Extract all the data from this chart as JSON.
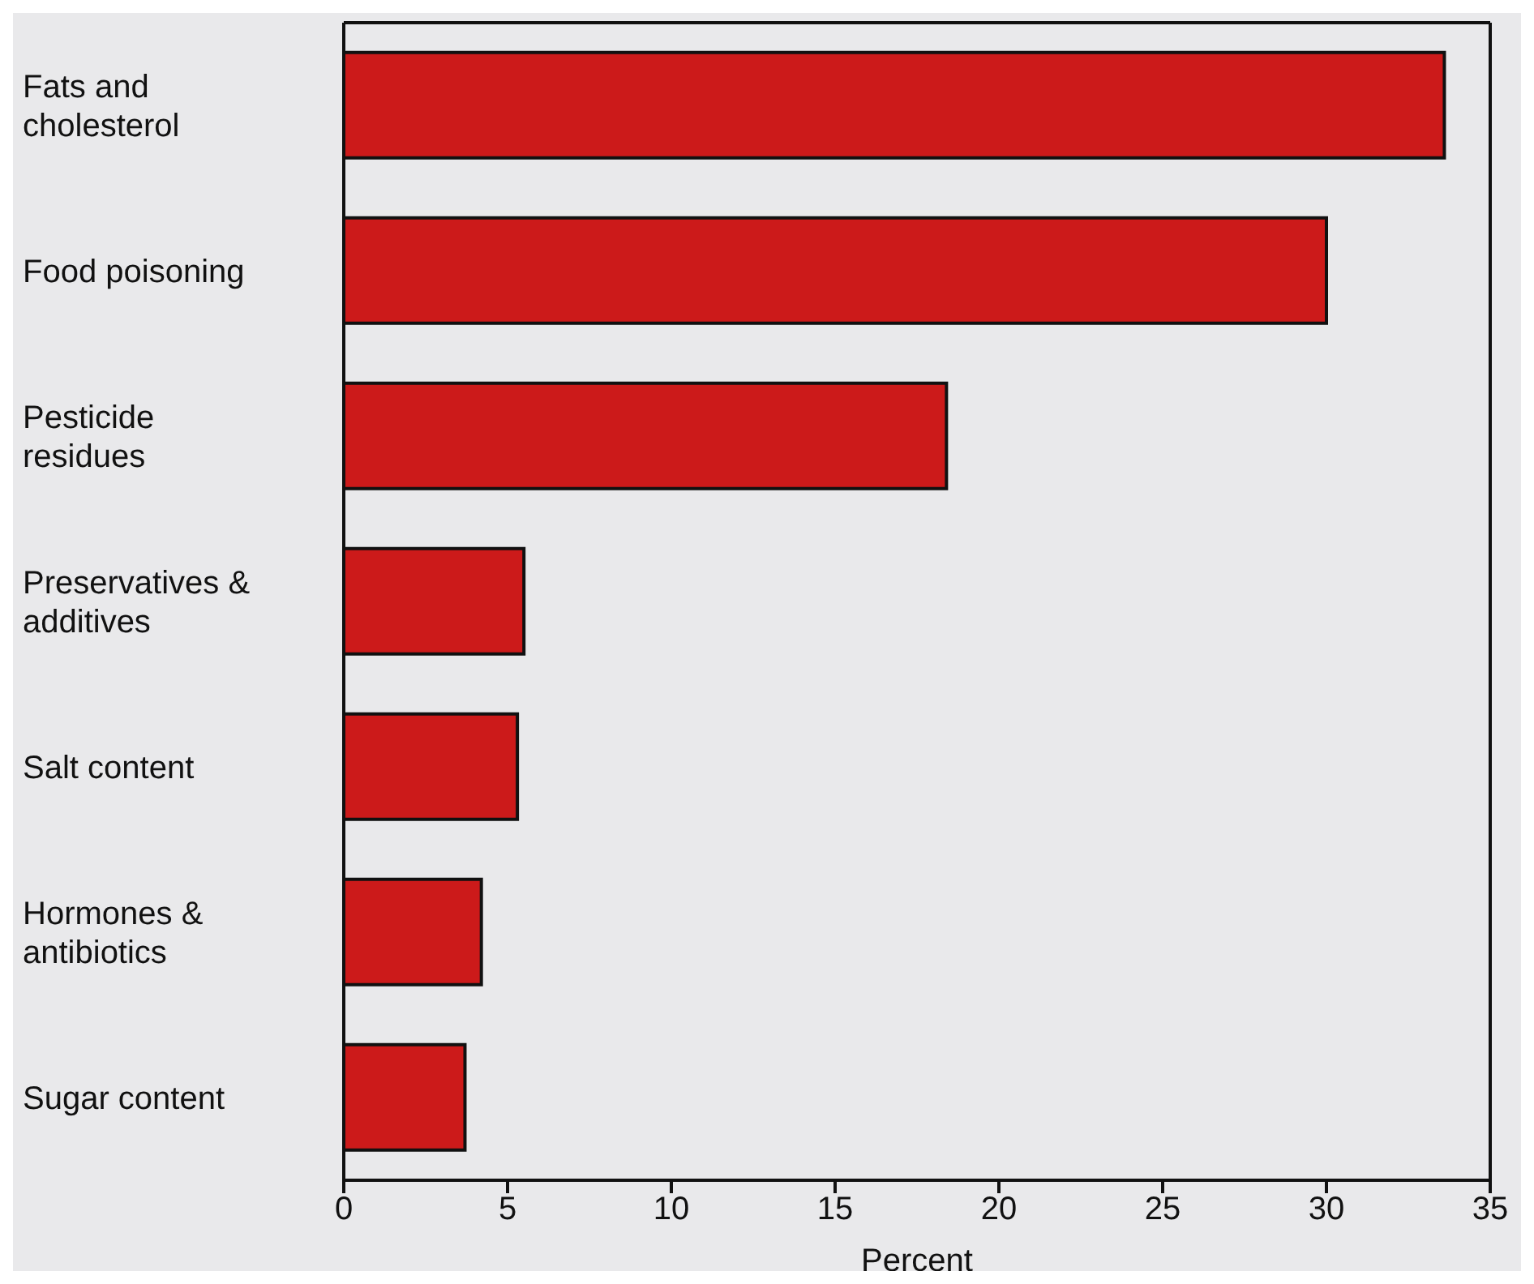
{
  "chart_data": {
    "type": "bar",
    "orientation": "horizontal",
    "categories": [
      "Fats and cholesterol",
      "Food poisoning",
      "Pesticide residues",
      "Preservatives & additives",
      "Salt content",
      "Hormones & antibiotics",
      "Sugar content"
    ],
    "values": [
      33.6,
      30.0,
      18.4,
      5.5,
      5.3,
      4.2,
      3.7
    ],
    "color": "#cc1a1a",
    "xlabel": "Percent",
    "xlim": [
      0,
      35
    ],
    "xticks": [
      0,
      5,
      10,
      15,
      20,
      25,
      30,
      35
    ]
  }
}
